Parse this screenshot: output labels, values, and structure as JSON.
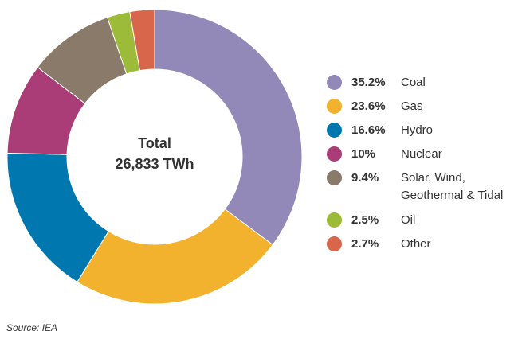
{
  "chart_data": {
    "type": "pie",
    "variant": "donut",
    "center_label": {
      "line1": "Total",
      "line2": "26,833 TWh"
    },
    "slices": [
      {
        "pct_text": "35.2%",
        "label_lines": [
          "Coal"
        ],
        "value": 35.2,
        "color": "#9289b9"
      },
      {
        "pct_text": "23.6%",
        "label_lines": [
          "Gas"
        ],
        "value": 23.6,
        "color": "#f2b22e"
      },
      {
        "pct_text": "16.6%",
        "label_lines": [
          "Hydro"
        ],
        "value": 16.6,
        "color": "#0077ae"
      },
      {
        "pct_text": "10%",
        "label_lines": [
          "Nuclear"
        ],
        "value": 10.0,
        "color": "#aa3d77"
      },
      {
        "pct_text": "9.4%",
        "label_lines": [
          "Solar, Wind,",
          "Geothermal & Tidal"
        ],
        "value": 9.4,
        "color": "#8a7a6a"
      },
      {
        "pct_text": "2.5%",
        "label_lines": [
          "Oil"
        ],
        "value": 2.5,
        "color": "#9cbb38"
      },
      {
        "pct_text": "2.7%",
        "label_lines": [
          "Other"
        ],
        "value": 2.7,
        "color": "#d8664b"
      }
    ],
    "legend_position": "right"
  },
  "source": "Source: IEA"
}
